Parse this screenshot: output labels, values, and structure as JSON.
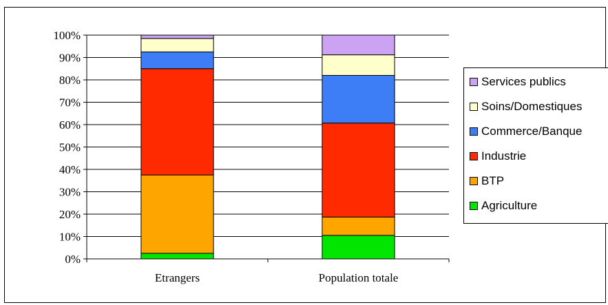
{
  "chart_data": {
    "type": "bar",
    "stacked": true,
    "categories": [
      "Etrangers",
      "Population totale"
    ],
    "series": [
      {
        "name": "Agriculture",
        "color": "#00e600",
        "values": [
          2.5,
          10.5
        ]
      },
      {
        "name": "BTP",
        "color": "#ffa500",
        "values": [
          35,
          8.2
        ]
      },
      {
        "name": "Industrie",
        "color": "#ff2a00",
        "values": [
          47.5,
          42
        ]
      },
      {
        "name": "Commerce/Banque",
        "color": "#3d7df5",
        "values": [
          7.5,
          21.3
        ]
      },
      {
        "name": "Soins/Domestiques",
        "color": "#ffffcc",
        "values": [
          6,
          9.2
        ]
      },
      {
        "name": "Services publics",
        "color": "#cca3f2",
        "values": [
          1.5,
          8.8
        ]
      }
    ],
    "ylim": [
      0,
      100
    ],
    "yticks": [
      "0%",
      "10%",
      "20%",
      "30%",
      "40%",
      "50%",
      "60%",
      "70%",
      "80%",
      "90%",
      "100%"
    ],
    "grid": true,
    "legend_position": "right",
    "title": "",
    "xlabel": "",
    "ylabel": ""
  }
}
